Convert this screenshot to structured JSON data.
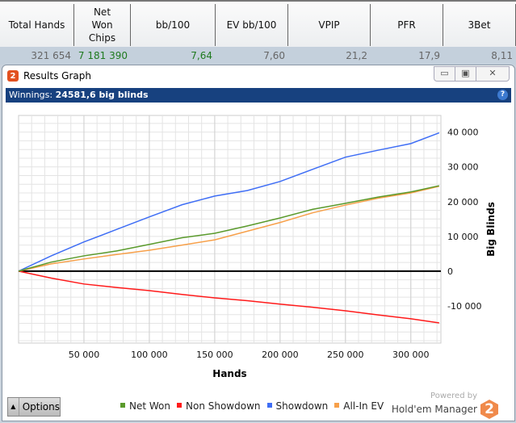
{
  "stats": {
    "headers": [
      "Total Hands",
      "Net Won Chips",
      "bb/100",
      "EV bb/100",
      "VPIP",
      "PFR",
      "3Bet"
    ],
    "values": [
      "321 654",
      "7 181 390",
      "7,64",
      "7,60",
      "21,2",
      "17,9",
      "8,11"
    ]
  },
  "window": {
    "title": "Results Graph",
    "minimize": "▭",
    "restore": "▣",
    "close": "✕"
  },
  "summary": {
    "label": "Winnings:",
    "value": "24581,6 big blinds",
    "help": "?"
  },
  "options_label": "Options",
  "powered_by": "Powered by",
  "brand": "Hold'em Manager",
  "brand_logo": "2",
  "colors": {
    "net_won": "#5a9a2c",
    "non_showdown": "#ff1a1a",
    "showdown": "#3f6ef5",
    "all_in_ev": "#f7a04a"
  },
  "chart_data": {
    "type": "line",
    "xlabel": "Hands",
    "ylabel": "Big Blinds",
    "xlim": [
      0,
      323000
    ],
    "ylim": [
      -20700,
      44800
    ],
    "xticks": [
      50000,
      100000,
      150000,
      200000,
      250000,
      300000
    ],
    "xtick_labels": [
      "50 000",
      "100 000",
      "150 000",
      "200 000",
      "250 000",
      "300 000"
    ],
    "yticks": [
      -10000,
      0,
      10000,
      20000,
      30000,
      40000
    ],
    "ytick_labels": [
      "-10 000",
      "0",
      "10 000",
      "20 000",
      "30 000",
      "40 000"
    ],
    "grid": true,
    "legend": "bottom",
    "x": [
      0,
      25000,
      50000,
      75000,
      100000,
      125000,
      150000,
      175000,
      200000,
      225000,
      250000,
      275000,
      300000,
      321654
    ],
    "series": [
      {
        "name": "Net Won",
        "values": [
          0,
          2600,
          4400,
          5800,
          7700,
          9600,
          10900,
          13000,
          15300,
          17800,
          19500,
          21300,
          22800,
          24582
        ]
      },
      {
        "name": "Non Showdown",
        "values": [
          0,
          -2000,
          -3700,
          -4700,
          -5600,
          -6700,
          -7700,
          -8500,
          -9500,
          -10400,
          -11400,
          -12600,
          -13700,
          -14900
        ]
      },
      {
        "name": "Showdown",
        "values": [
          0,
          4400,
          8400,
          12000,
          15600,
          19100,
          21600,
          23200,
          25800,
          29300,
          32800,
          34800,
          36700,
          39800
        ]
      },
      {
        "name": "All-In EV",
        "values": [
          0,
          2100,
          3500,
          4800,
          6000,
          7500,
          9000,
          11500,
          14000,
          16800,
          19000,
          21000,
          22500,
          24400
        ]
      }
    ]
  }
}
